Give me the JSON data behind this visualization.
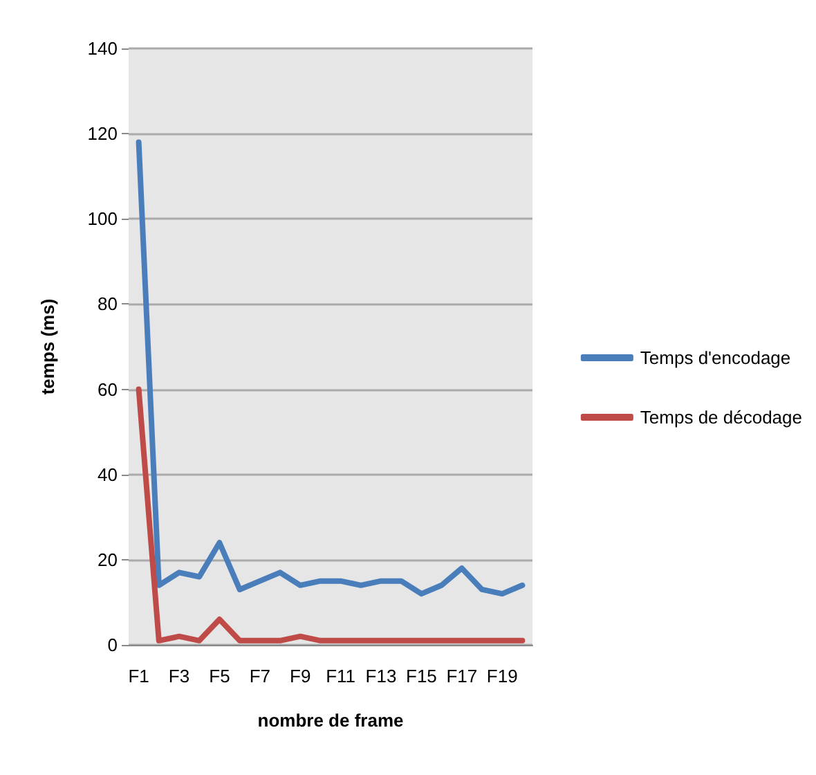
{
  "chart_data": {
    "type": "line",
    "xlabel": "nombre de frame",
    "ylabel": "temps (ms)",
    "categories": [
      "F1",
      null,
      "F3",
      null,
      "F5",
      null,
      "F7",
      null,
      "F9",
      null,
      "F11",
      null,
      "F13",
      null,
      "F15",
      null,
      "F17",
      null,
      "F19",
      null
    ],
    "series": [
      {
        "name": "Temps d'encodage",
        "color": "#4a7ebb",
        "values": [
          118,
          14,
          17,
          16,
          24,
          13,
          15,
          17,
          14,
          15,
          15,
          14,
          15,
          15,
          12,
          14,
          18,
          13,
          12,
          14
        ]
      },
      {
        "name": "Temps de décodage",
        "color": "#be4b48",
        "values": [
          60,
          1,
          2,
          1,
          6,
          1,
          1,
          1,
          2,
          1,
          1,
          1,
          1,
          1,
          1,
          1,
          1,
          1,
          1,
          1
        ]
      }
    ],
    "ylim": [
      0,
      140
    ],
    "yticks": [
      0,
      20,
      40,
      60,
      80,
      100,
      120,
      140
    ],
    "grid": "y",
    "legend": "right",
    "marker": "none",
    "line_style": "solid"
  }
}
